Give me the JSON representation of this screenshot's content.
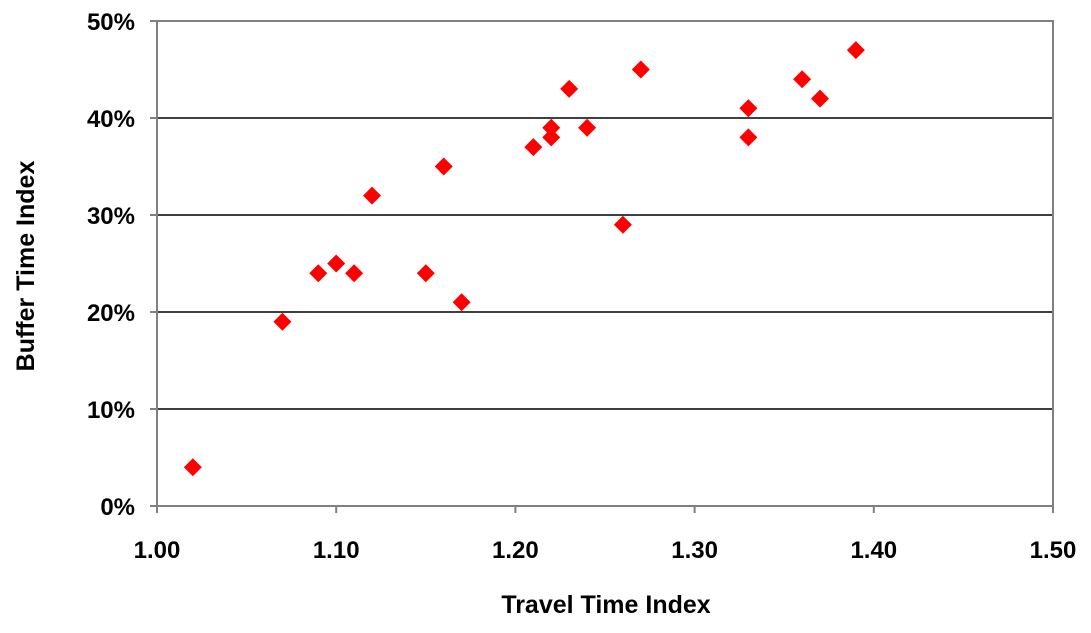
{
  "chart_data": {
    "type": "scatter",
    "title": "",
    "xlabel": "Travel Time Index",
    "ylabel": "Buffer Time Index",
    "xlim": [
      1.0,
      1.5
    ],
    "ylim": [
      0,
      50
    ],
    "x_ticks": [
      1.0,
      1.1,
      1.2,
      1.3,
      1.4,
      1.5
    ],
    "x_tick_labels": [
      "1.00",
      "1.10",
      "1.20",
      "1.30",
      "1.40",
      "1.50"
    ],
    "y_ticks": [
      0,
      10,
      20,
      30,
      40,
      50
    ],
    "y_tick_labels": [
      "0%",
      "10%",
      "20%",
      "30%",
      "40%",
      "50%"
    ],
    "y_unit": "percent",
    "grid": "horizontal",
    "legend": "none",
    "marker": "diamond",
    "marker_color": "#ff0000",
    "points": [
      {
        "x": 1.02,
        "y": 4
      },
      {
        "x": 1.07,
        "y": 19
      },
      {
        "x": 1.09,
        "y": 24
      },
      {
        "x": 1.1,
        "y": 25
      },
      {
        "x": 1.11,
        "y": 24
      },
      {
        "x": 1.12,
        "y": 32
      },
      {
        "x": 1.15,
        "y": 24
      },
      {
        "x": 1.16,
        "y": 35
      },
      {
        "x": 1.17,
        "y": 21
      },
      {
        "x": 1.21,
        "y": 37
      },
      {
        "x": 1.22,
        "y": 38
      },
      {
        "x": 1.22,
        "y": 39
      },
      {
        "x": 1.23,
        "y": 43
      },
      {
        "x": 1.24,
        "y": 39
      },
      {
        "x": 1.26,
        "y": 29
      },
      {
        "x": 1.27,
        "y": 45
      },
      {
        "x": 1.33,
        "y": 38
      },
      {
        "x": 1.33,
        "y": 41
      },
      {
        "x": 1.36,
        "y": 44
      },
      {
        "x": 1.37,
        "y": 42
      },
      {
        "x": 1.39,
        "y": 47
      }
    ]
  }
}
